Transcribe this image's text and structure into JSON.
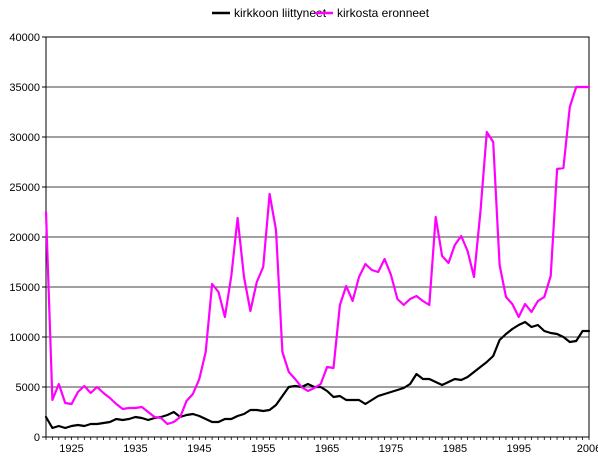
{
  "chart_data": {
    "type": "line",
    "title": "",
    "xlabel": "",
    "ylabel": "",
    "grid": "horizontal",
    "legend": "top-center",
    "xlim": [
      1921,
      2006
    ],
    "ylim": [
      0,
      40000
    ],
    "x_ticks": [
      1925,
      1935,
      1945,
      1955,
      1965,
      1975,
      1985,
      1995,
      2006
    ],
    "y_ticks": [
      0,
      5000,
      10000,
      15000,
      20000,
      25000,
      30000,
      35000,
      40000
    ],
    "x": [
      1921,
      1922,
      1923,
      1924,
      1925,
      1926,
      1927,
      1928,
      1929,
      1930,
      1931,
      1932,
      1933,
      1934,
      1935,
      1936,
      1937,
      1938,
      1939,
      1940,
      1941,
      1942,
      1943,
      1944,
      1945,
      1946,
      1947,
      1948,
      1949,
      1950,
      1951,
      1952,
      1953,
      1954,
      1955,
      1956,
      1957,
      1958,
      1959,
      1960,
      1961,
      1962,
      1963,
      1964,
      1965,
      1966,
      1967,
      1968,
      1969,
      1970,
      1971,
      1972,
      1973,
      1974,
      1975,
      1976,
      1977,
      1978,
      1979,
      1980,
      1981,
      1982,
      1983,
      1984,
      1985,
      1986,
      1987,
      1988,
      1989,
      1990,
      1991,
      1992,
      1993,
      1994,
      1995,
      1996,
      1997,
      1998,
      1999,
      2000,
      2001,
      2002,
      2003,
      2004,
      2005,
      2006
    ],
    "series": [
      {
        "name": "kirkkoon liittyneet",
        "color": "#000000",
        "values": [
          2000,
          900,
          1100,
          900,
          1100,
          1200,
          1100,
          1300,
          1300,
          1400,
          1500,
          1800,
          1700,
          1800,
          2000,
          1900,
          1700,
          1900,
          2000,
          2200,
          2500,
          2000,
          2200,
          2300,
          2100,
          1800,
          1500,
          1500,
          1800,
          1800,
          2100,
          2300,
          2700,
          2700,
          2600,
          2700,
          3200,
          4100,
          5000,
          5100,
          5000,
          5300,
          5000,
          5000,
          4600,
          4000,
          4100,
          3700,
          3700,
          3700,
          3300,
          3700,
          4100,
          4300,
          4500,
          4700,
          4900,
          5300,
          6300,
          5800,
          5800,
          5500,
          5200,
          5500,
          5800,
          5700,
          6000,
          6500,
          7000,
          7500,
          8100,
          9700,
          10300,
          10800,
          11200,
          11500,
          11000,
          11200,
          10600,
          10400,
          10300,
          10000,
          9500,
          9600,
          10600,
          10600
        ]
      },
      {
        "name": "kirkosta eronneet",
        "color": "#ff00ff",
        "values": [
          22500,
          3700,
          5300,
          3400,
          3300,
          4500,
          5100,
          4400,
          5000,
          4400,
          3900,
          3300,
          2800,
          2900,
          2900,
          3000,
          2500,
          2000,
          1900,
          1300,
          1500,
          2000,
          3600,
          4300,
          5800,
          8500,
          15300,
          14500,
          12000,
          16100,
          21900,
          16000,
          12600,
          15500,
          17000,
          24300,
          20700,
          8500,
          6500,
          5800,
          5000,
          4600,
          4900,
          5300,
          7000,
          6900,
          13200,
          15100,
          13600,
          16000,
          17300,
          16700,
          16500,
          17800,
          16200,
          13800,
          13200,
          13800,
          14100,
          13600,
          13200,
          22000,
          18100,
          17400,
          19200,
          20100,
          18600,
          16000,
          22500,
          30500,
          29500,
          17200,
          14000,
          13300,
          12000,
          13300,
          12500,
          13600,
          14000,
          16100,
          26800,
          26900,
          33000,
          35000,
          35000,
          35000
        ]
      }
    ]
  }
}
